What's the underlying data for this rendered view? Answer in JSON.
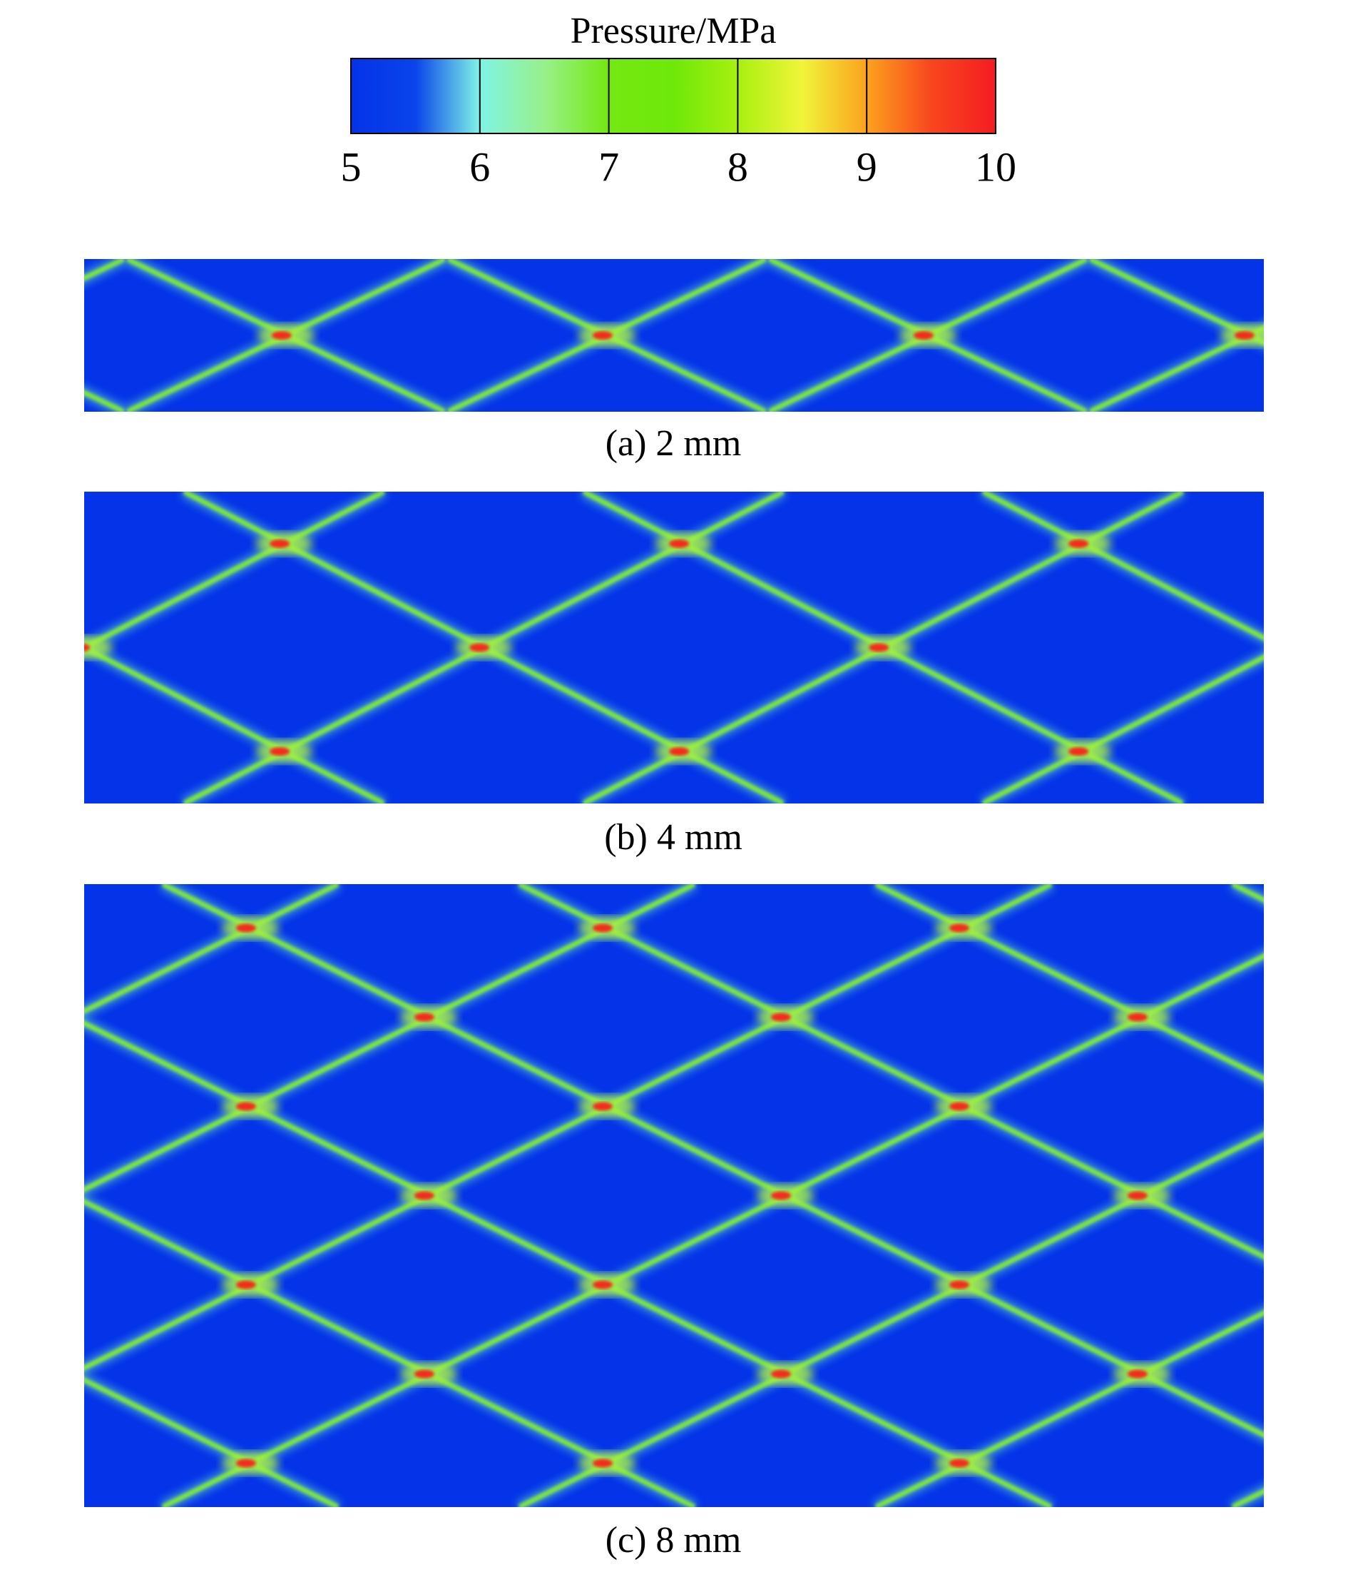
{
  "chart_data": {
    "type": "colorbar",
    "title": "Pressure/MPa",
    "clim": [
      5,
      10
    ],
    "ticks": [
      5,
      6,
      7,
      8,
      9,
      10
    ],
    "colormap": [
      "#0433e8",
      "#0a44ea",
      "#7ff4e6",
      "#98f08a",
      "#74e812",
      "#6ee80a",
      "#a8f010",
      "#f0f43a",
      "#fba21e",
      "#f8461e",
      "#f41c22"
    ]
  },
  "panels": [
    {
      "caption": "(a) 2 mm"
    },
    {
      "caption": "(b) 4 mm"
    },
    {
      "caption": "(c) 8 mm"
    }
  ]
}
